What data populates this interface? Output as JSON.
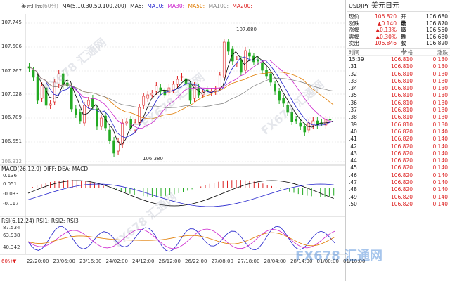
{
  "header": {
    "symbol_name": "美元日元",
    "period": "(60分)",
    "ma_labels": [
      "MA(5,10,30,50,100,200)",
      "MA5:",
      "MA10:",
      "MA30:",
      "MA50:",
      "MA100:",
      "MA200:"
    ]
  },
  "main_axis": [
    "107.745",
    "107.506",
    "107.267",
    "107.028",
    "106.789",
    "106.551",
    "106.312"
  ],
  "high_label": "107.680",
  "low_label": "106.380",
  "macd": {
    "title": "MACD(26,12,9) DIFF: DEA: MACD",
    "axis": [
      "0.136",
      "0.051",
      "-0.033",
      "-0.117"
    ]
  },
  "rsi": {
    "title": "RSI(6,12,24) RSI1: RSI2: RSI3",
    "axis": [
      "87.534",
      "63.938",
      "40.342"
    ]
  },
  "x_axis": [
    "22/20:00",
    "23/06:00",
    "23/16:00",
    "24/02:00",
    "24/12:00",
    "26/12:00",
    "26/22:00",
    "27/08:00",
    "27/18:00",
    "28/04:00",
    "28/14:00",
    "01/00:00",
    "01/10:00"
  ],
  "period_selector": "60分",
  "watermark": "FX678 汇通网",
  "quote": {
    "symbol": "USDJPY",
    "name": "美元日元",
    "rows": [
      {
        "k1": "现价",
        "v1": "106.820",
        "k2": "开盘",
        "v2": "106.680"
      },
      {
        "k1": "涨跌",
        "v1": "▲0.140",
        "k2": "最高",
        "v2": "106.870"
      },
      {
        "k1": "涨幅",
        "v1": "▲0.13%",
        "k2": "最低",
        "v2": "106.550"
      },
      {
        "k1": "震幅",
        "v1": "▲0.30%",
        "k2": "昨收",
        "v2": "106.680"
      },
      {
        "k1": "卖出",
        "v1": "106.846",
        "k2": "买入",
        "v2": "106.820"
      }
    ]
  },
  "ticks": {
    "headers": [
      "时间",
      "价格",
      "涨跌"
    ],
    "rows": [
      [
        "15:39",
        "106.810",
        "0.130"
      ],
      [
        ".31",
        "106.810",
        "0.130"
      ],
      [
        ".32",
        "106.810",
        "0.130"
      ],
      [
        ".33",
        "106.810",
        "0.130"
      ],
      [
        ".34",
        "106.810",
        "0.130"
      ],
      [
        ".35",
        "106.810",
        "0.130"
      ],
      [
        ".36",
        "106.810",
        "0.130"
      ],
      [
        ".37",
        "106.810",
        "0.130"
      ],
      [
        ".38",
        "106.810",
        "0.130"
      ],
      [
        ".39",
        "106.810",
        "0.130"
      ],
      [
        ".40",
        "106.820",
        "0.140"
      ],
      [
        ".41",
        "106.820",
        "0.140"
      ],
      [
        ".42",
        "106.820",
        "0.140"
      ],
      [
        ".43",
        "106.820",
        "0.140"
      ],
      [
        ".44",
        "106.820",
        "0.140"
      ],
      [
        ".45",
        "106.820",
        "0.140"
      ],
      [
        ".46",
        "106.820",
        "0.140"
      ],
      [
        ".47",
        "106.820",
        "0.140"
      ],
      [
        ".48",
        "106.820",
        "0.140"
      ],
      [
        ".49",
        "106.820",
        "0.140"
      ],
      [
        ".50",
        "106.820",
        "0.140"
      ]
    ]
  }
}
